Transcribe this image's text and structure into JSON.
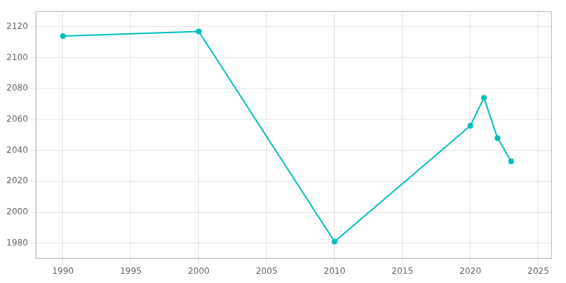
{
  "chart_data": {
    "type": "line",
    "x": [
      1990,
      2000,
      2010,
      2020,
      2021,
      2022,
      2023
    ],
    "values": [
      2114,
      2117,
      1981,
      2056,
      2074,
      2048,
      2033
    ],
    "color": "#00BEBE",
    "marker": "circle",
    "xlim": [
      1988,
      2026
    ],
    "ylim": [
      1970,
      2130
    ],
    "xticks": [
      1990,
      1995,
      2000,
      2005,
      2010,
      2015,
      2020,
      2025
    ],
    "yticks": [
      1980,
      2000,
      2020,
      2040,
      2060,
      2080,
      2100,
      2120
    ],
    "grid": true
  }
}
